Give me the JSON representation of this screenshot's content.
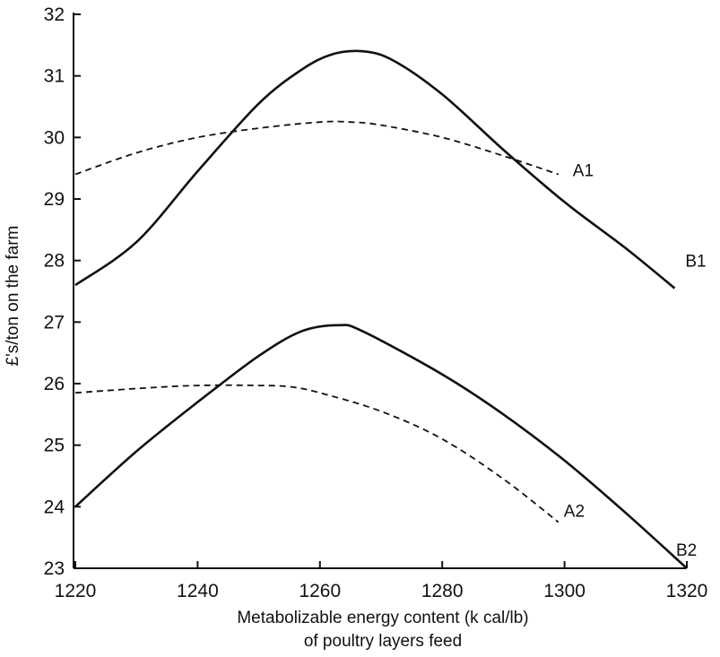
{
  "chart_data": {
    "type": "line",
    "title": "",
    "xlabel_line1": "Metabolizable energy content (k cal/lb)",
    "xlabel_line2": "of poultry layers feed",
    "ylabel": "£'s/ton on the farm",
    "xlim": [
      1220,
      1320
    ],
    "ylim": [
      23,
      32
    ],
    "x_ticks": [
      "1220",
      "1240",
      "1260",
      "1280",
      "1300",
      "1320"
    ],
    "y_ticks": [
      "23",
      "24",
      "25",
      "26",
      "27",
      "28",
      "29",
      "30",
      "31",
      "32"
    ],
    "grid": false,
    "series": [
      {
        "name": "A1",
        "style": "dashed",
        "x": [
          1220,
          1230,
          1240,
          1250,
          1260,
          1265,
          1270,
          1280,
          1290,
          1299
        ],
        "y": [
          29.4,
          29.75,
          30.0,
          30.15,
          30.25,
          30.25,
          30.2,
          30.0,
          29.7,
          29.4
        ]
      },
      {
        "name": "B1",
        "style": "solid",
        "x": [
          1220,
          1230,
          1240,
          1250,
          1257,
          1262,
          1267,
          1272,
          1280,
          1290,
          1300,
          1310,
          1318
        ],
        "y": [
          27.6,
          28.3,
          29.45,
          30.55,
          31.1,
          31.35,
          31.4,
          31.25,
          30.7,
          29.8,
          28.95,
          28.2,
          27.55
        ]
      },
      {
        "name": "A2",
        "style": "dashed",
        "x": [
          1220,
          1230,
          1240,
          1250,
          1255,
          1260,
          1270,
          1280,
          1290,
          1299
        ],
        "y": [
          25.85,
          25.92,
          25.97,
          25.97,
          25.95,
          25.85,
          25.55,
          25.1,
          24.45,
          23.75
        ]
      },
      {
        "name": "B2",
        "style": "solid",
        "x": [
          1220,
          1230,
          1240,
          1250,
          1257,
          1263,
          1267,
          1280,
          1290,
          1300,
          1310,
          1320
        ],
        "y": [
          24.0,
          24.9,
          25.7,
          26.45,
          26.85,
          26.95,
          26.85,
          26.15,
          25.5,
          24.75,
          23.9,
          23.0
        ]
      }
    ],
    "series_label_offsets_note": ""
  }
}
